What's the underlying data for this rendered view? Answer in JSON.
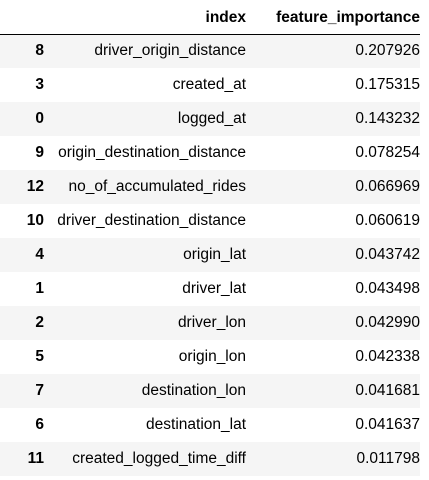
{
  "table": {
    "columns": [
      "",
      "index",
      "feature_importance"
    ],
    "rows": [
      {
        "row_label": "8",
        "index": "driver_origin_distance",
        "feature_importance": "0.207926"
      },
      {
        "row_label": "3",
        "index": "created_at",
        "feature_importance": "0.175315"
      },
      {
        "row_label": "0",
        "index": "logged_at",
        "feature_importance": "0.143232"
      },
      {
        "row_label": "9",
        "index": "origin_destination_distance",
        "feature_importance": "0.078254"
      },
      {
        "row_label": "12",
        "index": "no_of_accumulated_rides",
        "feature_importance": "0.066969"
      },
      {
        "row_label": "10",
        "index": "driver_destination_distance",
        "feature_importance": "0.060619"
      },
      {
        "row_label": "4",
        "index": "origin_lat",
        "feature_importance": "0.043742"
      },
      {
        "row_label": "1",
        "index": "driver_lat",
        "feature_importance": "0.043498"
      },
      {
        "row_label": "2",
        "index": "driver_lon",
        "feature_importance": "0.042990"
      },
      {
        "row_label": "5",
        "index": "origin_lon",
        "feature_importance": "0.042338"
      },
      {
        "row_label": "7",
        "index": "destination_lon",
        "feature_importance": "0.041681"
      },
      {
        "row_label": "6",
        "index": "destination_lat",
        "feature_importance": "0.041637"
      },
      {
        "row_label": "11",
        "index": "created_logged_time_diff",
        "feature_importance": "0.011798"
      }
    ]
  },
  "colors": {
    "stripe": "#f5f5f5",
    "header_border": "#000000",
    "text": "#000000"
  }
}
